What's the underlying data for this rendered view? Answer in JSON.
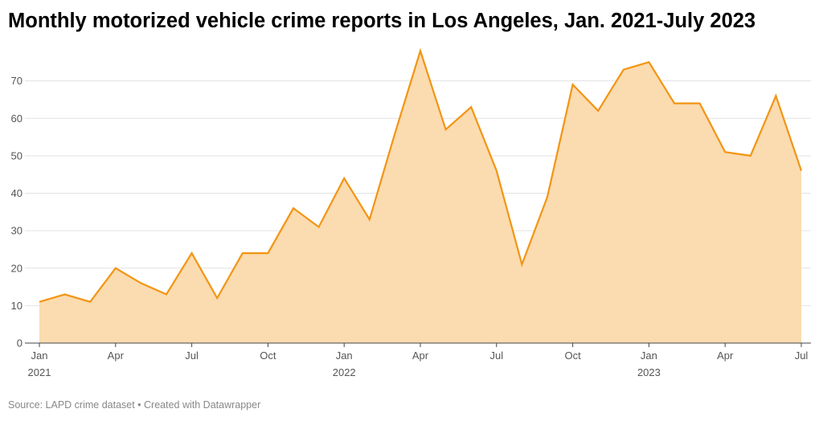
{
  "header": {
    "title": "Monthly motorized vehicle crime reports in Los Angeles, Jan. 2021-July 2023"
  },
  "footer": {
    "source": "Source: LAPD crime dataset • Created with Datawrapper"
  },
  "colors": {
    "line": "#f29513",
    "fill": "#fbdbb0",
    "grid": "#e2e2e2",
    "baseline": "#444444",
    "tick_text": "#555555"
  },
  "chart_data": {
    "type": "area",
    "title": "Monthly motorized vehicle crime reports in Los Angeles, Jan. 2021-July 2023",
    "xlabel": "",
    "ylabel": "",
    "ylim": [
      0,
      80
    ],
    "yticks": [
      0,
      10,
      20,
      30,
      40,
      50,
      60,
      70
    ],
    "grid": true,
    "x": [
      "2021-01",
      "2021-02",
      "2021-03",
      "2021-04",
      "2021-05",
      "2021-06",
      "2021-07",
      "2021-08",
      "2021-09",
      "2021-10",
      "2021-11",
      "2021-12",
      "2022-01",
      "2022-02",
      "2022-03",
      "2022-04",
      "2022-05",
      "2022-06",
      "2022-07",
      "2022-08",
      "2022-09",
      "2022-10",
      "2022-11",
      "2022-12",
      "2023-01",
      "2023-02",
      "2023-03",
      "2023-04",
      "2023-05",
      "2023-06",
      "2023-07"
    ],
    "values": [
      11,
      13,
      11,
      20,
      16,
      13,
      24,
      12,
      24,
      24,
      36,
      31,
      44,
      33,
      56,
      78,
      57,
      63,
      46,
      21,
      39,
      69,
      62,
      73,
      75,
      64,
      64,
      51,
      50,
      66,
      46
    ],
    "xticks": [
      {
        "month": "2021-01",
        "label": "Jan",
        "year": "2021"
      },
      {
        "month": "2021-04",
        "label": "Apr",
        "year": ""
      },
      {
        "month": "2021-07",
        "label": "Jul",
        "year": ""
      },
      {
        "month": "2021-10",
        "label": "Oct",
        "year": ""
      },
      {
        "month": "2022-01",
        "label": "Jan",
        "year": "2022"
      },
      {
        "month": "2022-04",
        "label": "Apr",
        "year": ""
      },
      {
        "month": "2022-07",
        "label": "Jul",
        "year": ""
      },
      {
        "month": "2022-10",
        "label": "Oct",
        "year": ""
      },
      {
        "month": "2023-01",
        "label": "Jan",
        "year": "2023"
      },
      {
        "month": "2023-04",
        "label": "Apr",
        "year": ""
      },
      {
        "month": "2023-07",
        "label": "Jul",
        "year": ""
      }
    ]
  }
}
